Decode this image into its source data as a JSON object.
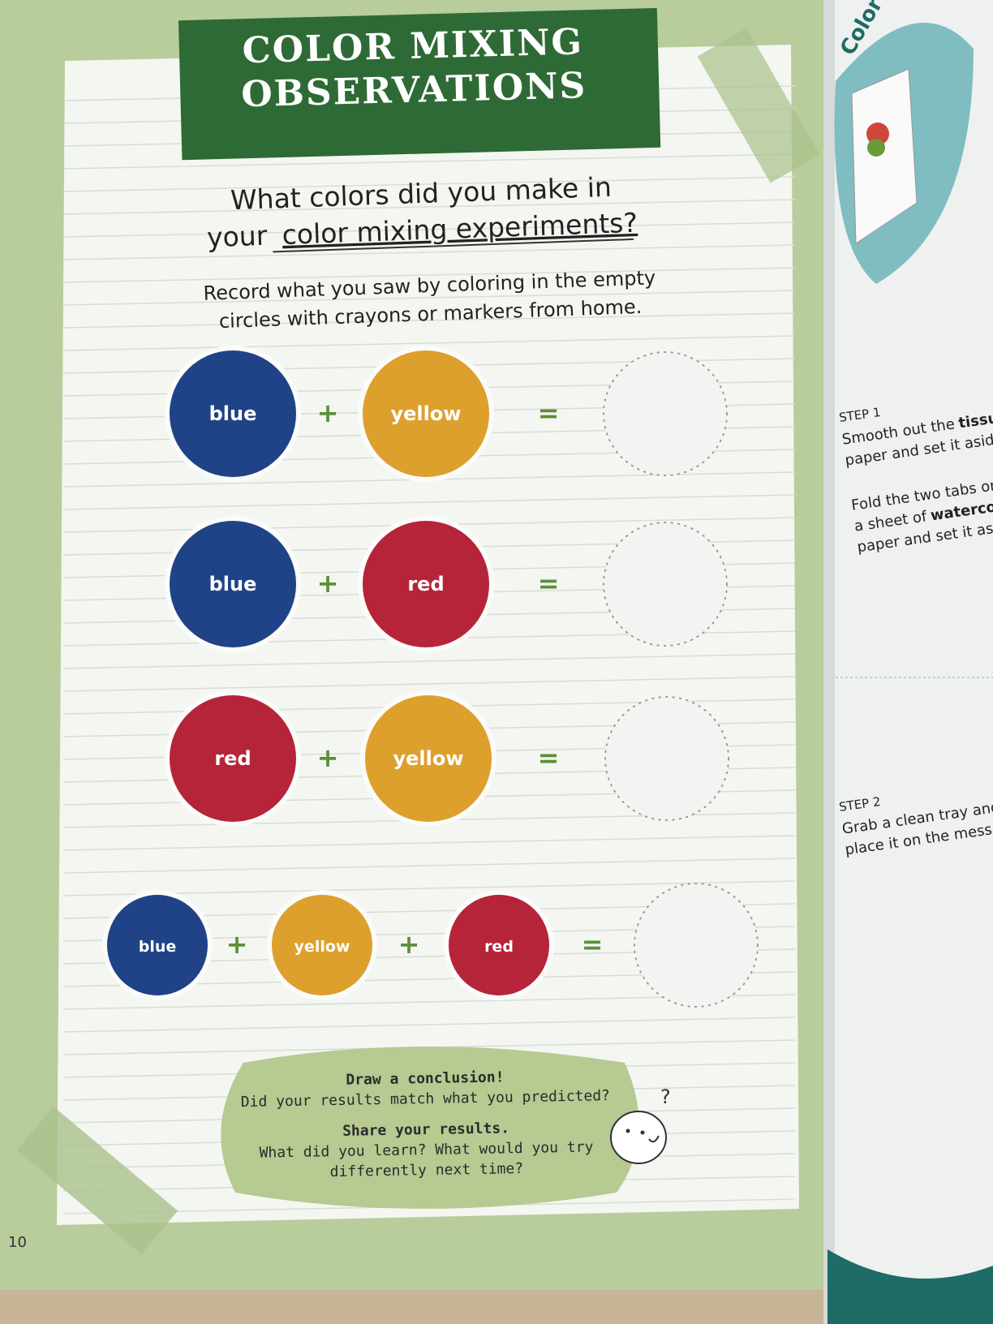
{
  "left_page": {
    "title": [
      "COLOR MIXING",
      "OBSERVATIONS"
    ],
    "question": {
      "line1": "What colors did you make in",
      "line2": "your",
      "line2_underlined": "color mixing experiments?"
    },
    "instructions": [
      "Record what you saw by coloring in the empty",
      "circles with crayons or markers from home."
    ],
    "plus": "+",
    "equals": "=",
    "equations": [
      {
        "inputs": [
          {
            "label": "blue",
            "color": "#1f4386"
          },
          {
            "label": "yellow",
            "color": "#dda02c"
          }
        ]
      },
      {
        "inputs": [
          {
            "label": "blue",
            "color": "#1f4386"
          },
          {
            "label": "red",
            "color": "#b6243a"
          }
        ]
      },
      {
        "inputs": [
          {
            "label": "red",
            "color": "#b6243a"
          },
          {
            "label": "yellow",
            "color": "#dda02c"
          }
        ]
      },
      {
        "inputs": [
          {
            "label": "blue",
            "color": "#1f4386"
          },
          {
            "label": "yellow",
            "color": "#dda02c"
          },
          {
            "label": "red",
            "color": "#b6243a"
          }
        ]
      }
    ],
    "conclusion": {
      "heading1": "Draw a conclusion!",
      "text1": "Did your results match what you predicted?",
      "heading2": "Share your results.",
      "text2": [
        "What did you learn? What would you try",
        "differently next time?"
      ]
    },
    "thought_mark": "?",
    "page_number": "10"
  },
  "right_page": {
    "header": "Color",
    "steps": [
      {
        "label": "STEP 1",
        "paragraphs": [
          [
            [
              {
                "text": "Smooth out the"
              },
              {
                "text": "tissue",
                "bold": true
              }
            ],
            [
              {
                "text": "paper and set it aside."
              }
            ]
          ],
          [
            [
              {
                "text": "Fold the two tabs on"
              }
            ],
            [
              {
                "text": "a sheet of"
              },
              {
                "text": "watercolor",
                "bold": true
              }
            ],
            [
              {
                "text": "paper and set it aside."
              }
            ]
          ]
        ]
      },
      {
        "label": "STEP 2",
        "paragraphs": [
          [
            [
              {
                "text": "Grab a clean tray and"
              }
            ],
            [
              {
                "text": "place it on the mess mat."
              }
            ]
          ]
        ]
      }
    ]
  }
}
